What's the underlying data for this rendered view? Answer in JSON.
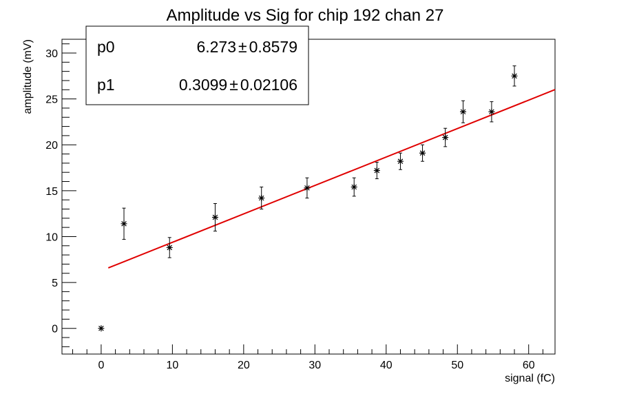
{
  "chart_data": {
    "type": "scatter",
    "title": "Amplitude vs Sig for chip 192 chan 27",
    "xlabel": "signal (fC)",
    "ylabel": "amplitude (mV)",
    "xlim": [
      -5.5,
      63.7
    ],
    "ylim": [
      -2.8,
      31.5
    ],
    "xticks": [
      0,
      10,
      20,
      30,
      40,
      50,
      60
    ],
    "yticks": [
      0,
      5,
      10,
      15,
      20,
      25,
      30
    ],
    "grid": false,
    "marker": "asterisk",
    "series": [
      {
        "x": [
          0,
          3.2,
          9.6,
          16.0,
          22.5,
          28.9,
          35.5,
          38.7,
          42.0,
          45.1,
          48.3,
          50.8,
          54.8,
          58.0
        ],
        "y": [
          0.0,
          11.4,
          8.8,
          12.1,
          14.2,
          15.3,
          15.4,
          17.2,
          18.2,
          19.1,
          20.8,
          23.6,
          23.6,
          27.5
        ],
        "yerr": [
          0.0,
          1.7,
          1.1,
          1.5,
          1.2,
          1.1,
          1.0,
          0.9,
          0.9,
          0.9,
          1.0,
          1.2,
          1.1,
          1.1
        ]
      }
    ],
    "fit": {
      "type": "line",
      "color": "#e00000",
      "x_range": [
        1.0,
        63.7
      ],
      "p0": 6.273,
      "p1": 0.3099
    },
    "stats_box": {
      "placement": "top-left",
      "rows": [
        {
          "name": "p0",
          "value": "6.273",
          "pm": "±",
          "error": "0.8579"
        },
        {
          "name": "p1",
          "value": "0.3099",
          "pm": "±",
          "error": "0.02106"
        }
      ]
    }
  }
}
